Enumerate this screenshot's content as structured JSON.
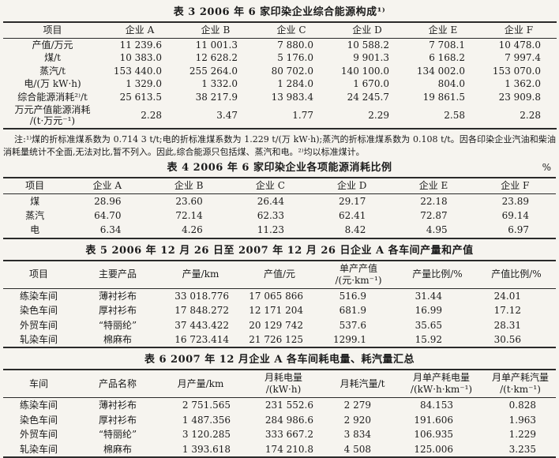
{
  "colors": {
    "background": "#f6f4ef",
    "text": "#1b1b1b",
    "rule": "#2a2a2a"
  },
  "tables": [
    {
      "id": "table-3",
      "title": "表 3  2006 年 6 家印染企业综合能源构成¹⁾",
      "unit": "",
      "columns": [
        "项目",
        "企业 A",
        "企业 B",
        "企业 C",
        "企业 D",
        "企业 E",
        "企业 F"
      ],
      "rows": [
        [
          "产值/万元",
          "11 239.6",
          "11 001.3",
          "7 880.0",
          "10 588.2",
          "7 708.1",
          "10 478.0"
        ],
        [
          "煤/t",
          "10 383.0",
          "12 628.2",
          "5 176.0",
          "9 901.3",
          "6 168.2",
          "7 997.4"
        ],
        [
          "蒸汽/t",
          "153 440.0",
          "255 264.0",
          "80 702.0",
          "140 100.0",
          "134 002.0",
          "153 070.0"
        ],
        [
          "电/(万 kW·h)",
          "1 329.0",
          "1 332.0",
          "1 284.0",
          "1 670.0",
          "804.0",
          "1 362.0"
        ],
        [
          "综合能源消耗²⁾/t",
          "25 613.5",
          "38 217.9",
          "13 983.4",
          "24 245.7",
          "19 861.5",
          "23 909.8"
        ],
        [
          "万元产值能源消耗\n/(t·万元⁻¹)",
          "2.28",
          "3.47",
          "1.77",
          "2.29",
          "2.58",
          "2.28"
        ]
      ],
      "footnote": "注:¹⁾煤的折标准煤系数为 0.714 3 t/t;电的折标准煤系数为 1.229 t/(万 kW·h);蒸汽的折标准煤系数为 0.108 t/t。因各印染企业汽油和柴油消耗量统计不全面,无法对比,暂不列入。因此,综合能源只包括煤、蒸汽和电。²⁾均以标准煤计。"
    },
    {
      "id": "table-4",
      "title": "表 4  2006 年 6 家印染企业各项能源消耗比例",
      "unit": "%",
      "columns": [
        "项目",
        "企业 A",
        "企业 B",
        "企业 C",
        "企业 D",
        "企业 E",
        "企业 F"
      ],
      "rows": [
        [
          "煤",
          "28.96",
          "23.60",
          "26.44",
          "29.17",
          "22.18",
          "23.89"
        ],
        [
          "蒸汽",
          "64.70",
          "72.14",
          "62.33",
          "62.41",
          "72.87",
          "69.14"
        ],
        [
          "电",
          "6.34",
          "4.26",
          "11.23",
          "8.42",
          "4.95",
          "6.97"
        ]
      ]
    },
    {
      "id": "table-5",
      "title": "表 5  2006 年 12 月 26 日至 2007 年 12 月 26 日企业 A 各车间产量和产值",
      "unit": "",
      "columns": [
        "项目",
        "主要产品",
        "产量/km",
        "产值/元",
        "单产产值\n/(元·km⁻¹)",
        "产量比例/%",
        "产值比例/%"
      ],
      "rows": [
        [
          "练染车间",
          "薄衬衫布",
          "33 018.776",
          "17 065 866",
          "516.9",
          "31.44",
          "24.01"
        ],
        [
          "染色车间",
          "厚衬衫布",
          "17 848.272",
          "12 171 204",
          "681.9",
          "16.99",
          "17.12"
        ],
        [
          "外贸车间",
          "“特丽纶”",
          "37 443.422",
          "20 129 742",
          "537.6",
          "35.65",
          "28.31"
        ],
        [
          "轧染车间",
          "棉麻布",
          "16 723.414",
          "21 726 125",
          "1299.1",
          "15.92",
          "30.56"
        ]
      ]
    },
    {
      "id": "table-6",
      "title": "表 6  2007 年 12 月企业 A 各车间耗电量、耗汽量汇总",
      "unit": "",
      "columns": [
        "车间",
        "产品名称",
        "月产量/km",
        "月耗电量\n/(kW·h)",
        "月耗汽量/t",
        "月单产耗电量\n/(kW·h·km⁻¹)",
        "月单产耗汽量\n/(t·km⁻¹)"
      ],
      "rows": [
        [
          "练染车间",
          "薄衬衫布",
          "2 751.565",
          "231 552.6",
          "2 279",
          "84.153",
          "0.828"
        ],
        [
          "染色车间",
          "厚衬衫布",
          "1 487.356",
          "284 986.6",
          "2 920",
          "191.606",
          "1.963"
        ],
        [
          "外贸车间",
          "“特丽纶”",
          "3 120.285",
          "333 667.2",
          "3 834",
          "106.935",
          "1.229"
        ],
        [
          "轧染车间",
          "棉麻布",
          "1 393.618",
          "174 210.8",
          "4 508",
          "125.006",
          "3.235"
        ]
      ]
    }
  ]
}
